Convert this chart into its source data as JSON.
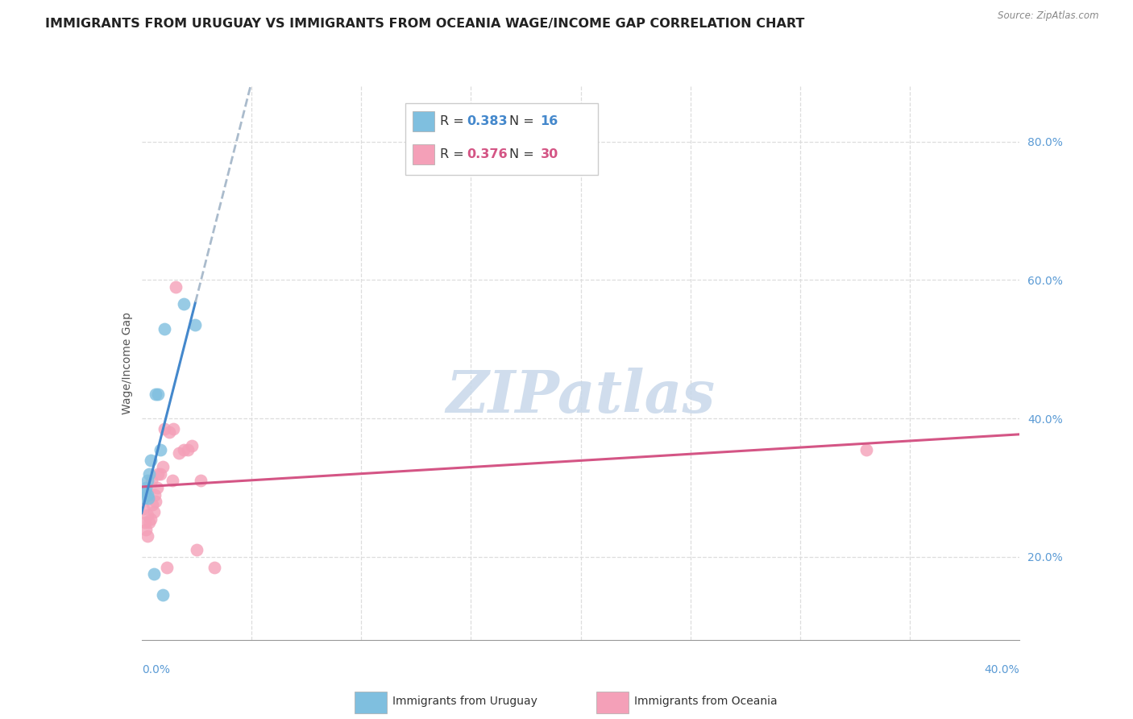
{
  "title": "IMMIGRANTS FROM URUGUAY VS IMMIGRANTS FROM OCEANIA WAGE/INCOME GAP CORRELATION CHART",
  "source": "Source: ZipAtlas.com",
  "ylabel": "Wage/Income Gap",
  "right_yticks": [
    "20.0%",
    "40.0%",
    "60.0%",
    "80.0%"
  ],
  "right_ytick_vals": [
    20.0,
    40.0,
    60.0,
    80.0
  ],
  "color_uruguay": "#7fbfdf",
  "color_oceania": "#f4a0b8",
  "color_line_uruguay": "#4488cc",
  "color_line_oceania": "#d45585",
  "color_line_extrapolated": "#aabbcc",
  "uruguay_x": [
    0.1,
    0.15,
    0.2,
    0.25,
    0.25,
    0.3,
    0.35,
    0.4,
    0.55,
    0.65,
    0.75,
    0.85,
    0.95,
    1.05,
    1.9,
    2.45
  ],
  "uruguay_y": [
    28.5,
    29.5,
    30.0,
    31.0,
    29.0,
    28.5,
    32.0,
    34.0,
    17.5,
    43.5,
    43.5,
    35.5,
    14.5,
    53.0,
    56.5,
    53.5
  ],
  "oceania_x": [
    0.1,
    0.15,
    0.2,
    0.25,
    0.28,
    0.35,
    0.4,
    0.45,
    0.5,
    0.55,
    0.6,
    0.65,
    0.7,
    0.75,
    0.85,
    0.95,
    1.05,
    1.15,
    1.25,
    1.4,
    1.45,
    1.55,
    1.7,
    1.9,
    2.1,
    2.3,
    2.5,
    2.7,
    3.3,
    33.0
  ],
  "oceania_y": [
    27.0,
    25.0,
    24.0,
    26.0,
    23.0,
    25.0,
    25.5,
    31.0,
    27.5,
    26.5,
    29.0,
    28.0,
    30.0,
    32.0,
    32.0,
    33.0,
    38.5,
    18.5,
    38.0,
    31.0,
    38.5,
    59.0,
    35.0,
    35.5,
    35.5,
    36.0,
    21.0,
    31.0,
    18.5,
    35.5
  ],
  "xmin": 0.0,
  "xmax": 40.0,
  "ymin": 8.0,
  "ymax": 88.0,
  "background_color": "#ffffff",
  "grid_color": "#dddddd",
  "title_fontsize": 11.5,
  "axis_label_fontsize": 10,
  "watermark_text": "ZIPatlas",
  "watermark_color": "#c8d8ea",
  "ury_R": "0.383",
  "ury_N": "16",
  "oc_R": "0.376",
  "oc_N": "30"
}
